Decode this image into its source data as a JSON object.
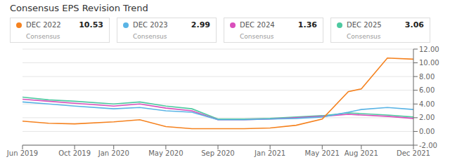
{
  "chart_data": {
    "type": "line",
    "title": "Consensus EPS Revision Trend",
    "x": [
      0,
      2,
      4,
      7,
      9,
      11,
      13,
      15,
      17,
      19,
      21,
      23,
      25,
      26,
      28,
      30
    ],
    "xlim": [
      0,
      30
    ],
    "xticks": [
      {
        "value": 0,
        "label": "Jun 2019"
      },
      {
        "value": 4,
        "label": "Oct 2019"
      },
      {
        "value": 7,
        "label": "Jan 2020"
      },
      {
        "value": 11,
        "label": "May 2020"
      },
      {
        "value": 15,
        "label": "Sep 2020"
      },
      {
        "value": 19,
        "label": "Jan 2021"
      },
      {
        "value": 23,
        "label": "May 2021"
      },
      {
        "value": 26,
        "label": "Aug 2021"
      },
      {
        "value": 30,
        "label": "Dec 2021"
      }
    ],
    "ylim": [
      -2.0,
      12.0
    ],
    "yticks": [
      {
        "value": -2.0,
        "label": "-2.00"
      },
      {
        "value": 0.0,
        "label": "0.00"
      },
      {
        "value": 2.0,
        "label": "2.00"
      },
      {
        "value": 4.0,
        "label": "4.00"
      },
      {
        "value": 6.0,
        "label": "6.00"
      },
      {
        "value": 8.0,
        "label": "8.00"
      },
      {
        "value": 10.0,
        "label": "10.00"
      },
      {
        "value": 12.0,
        "label": "12.00"
      }
    ],
    "grid": true,
    "legend": "top",
    "series": [
      {
        "name": "DEC 2025",
        "color": "#4ec9a0",
        "legend_sublabel": "Consensus",
        "legend_value": 3.06,
        "values": [
          5.0,
          4.6,
          4.4,
          4.0,
          4.3,
          3.7,
          3.3,
          1.8,
          1.8,
          1.9,
          2.1,
          2.3,
          2.7,
          2.6,
          2.4,
          2.1
        ]
      },
      {
        "name": "DEC 2024",
        "color": "#d94fbb",
        "legend_sublabel": "Consensus",
        "legend_value": 1.36,
        "values": [
          4.7,
          4.4,
          4.1,
          3.7,
          4.0,
          3.4,
          3.0,
          1.7,
          1.7,
          1.8,
          2.0,
          2.2,
          2.5,
          2.4,
          2.2,
          1.9
        ]
      },
      {
        "name": "DEC 2023",
        "color": "#5ab4e5",
        "legend_sublabel": "Consensus",
        "legend_value": 2.99,
        "values": [
          4.3,
          4.0,
          3.7,
          3.3,
          3.5,
          3.0,
          2.8,
          1.7,
          1.7,
          1.8,
          1.9,
          2.1,
          2.8,
          3.2,
          3.5,
          3.2
        ]
      },
      {
        "name": "DEC 2022",
        "color": "#f5821f",
        "legend_sublabel": "Consensus",
        "legend_value": 10.53,
        "values": [
          1.5,
          1.2,
          1.1,
          1.4,
          1.7,
          0.7,
          0.4,
          0.4,
          0.4,
          0.5,
          0.9,
          1.8,
          5.8,
          6.2,
          10.7,
          10.53
        ]
      }
    ]
  }
}
